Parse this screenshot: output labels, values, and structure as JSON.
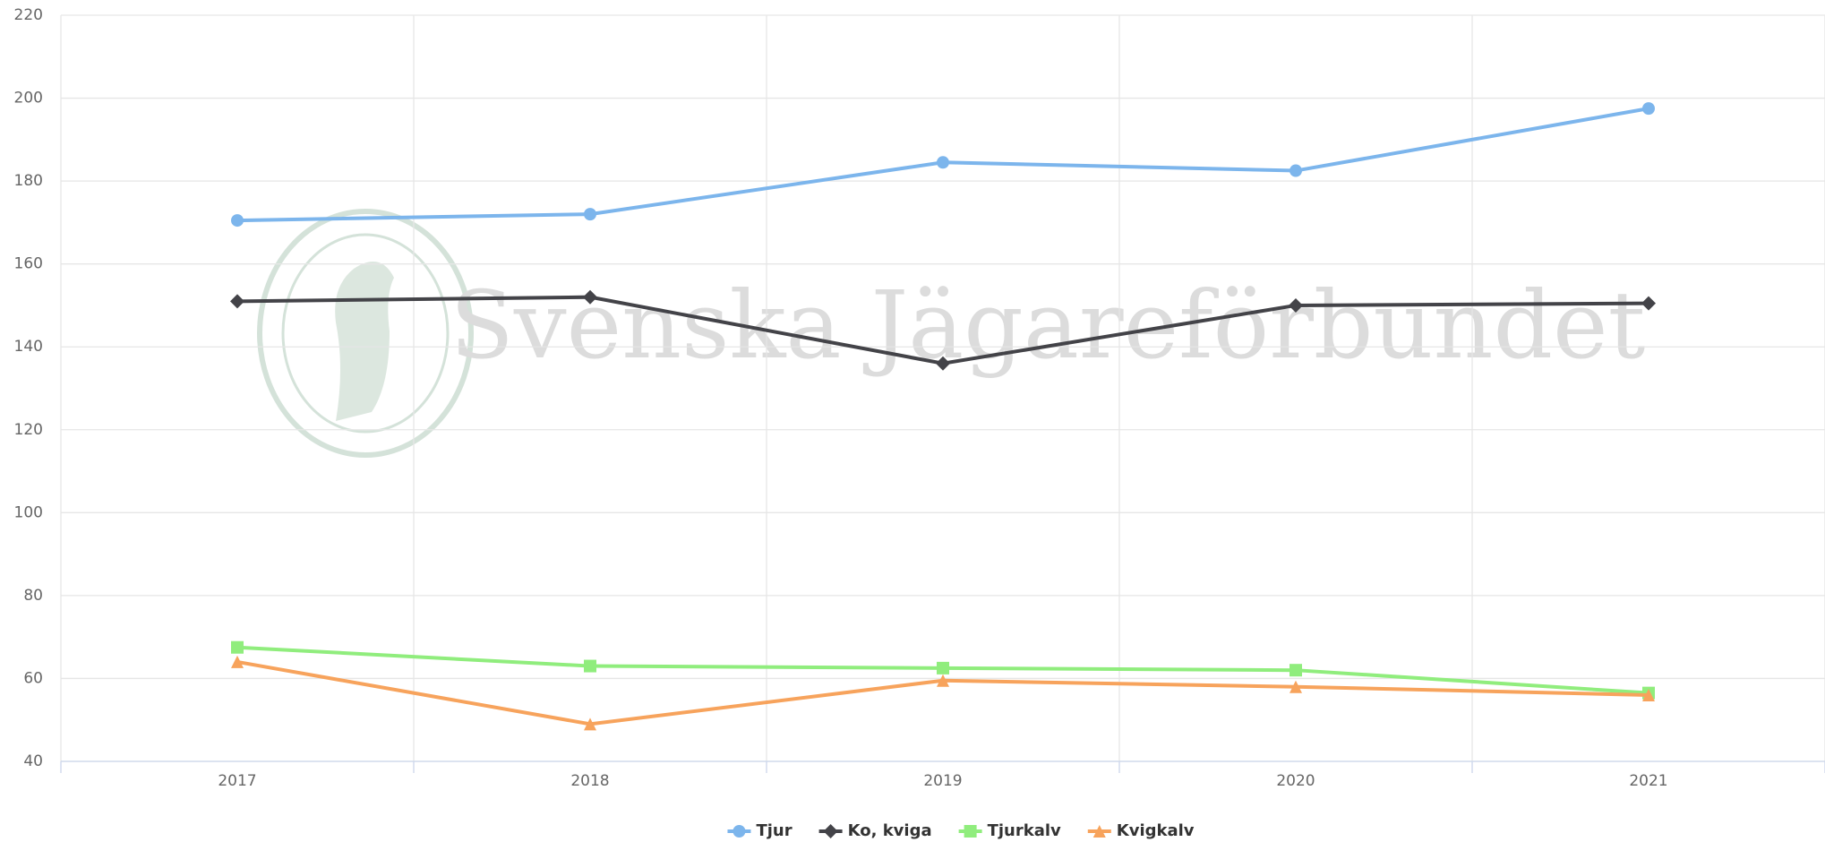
{
  "chart_data": {
    "type": "line",
    "watermark": "Svenska Jägareförbundet",
    "categories": [
      "2017",
      "2018",
      "2019",
      "2020",
      "2021"
    ],
    "series": [
      {
        "name": "Tjur",
        "color": "#7cb5ec",
        "marker": "circle",
        "values": [
          170.5,
          172,
          184.5,
          182.5,
          197.5
        ]
      },
      {
        "name": "Ko, kviga",
        "color": "#434348",
        "marker": "diamond",
        "values": [
          151,
          152,
          136,
          150,
          150.5
        ]
      },
      {
        "name": "Tjurkalv",
        "color": "#90ed7d",
        "marker": "square",
        "values": [
          67.5,
          63,
          62.5,
          62,
          56.5
        ]
      },
      {
        "name": "Kvigkalv",
        "color": "#f7a35c",
        "marker": "triangle",
        "values": [
          64,
          49,
          59.5,
          58,
          56
        ]
      }
    ],
    "ylim": [
      40,
      220
    ],
    "yticks": [
      40,
      60,
      80,
      100,
      120,
      140,
      160,
      180,
      200,
      220
    ],
    "grid": true,
    "legend": "bottom"
  }
}
